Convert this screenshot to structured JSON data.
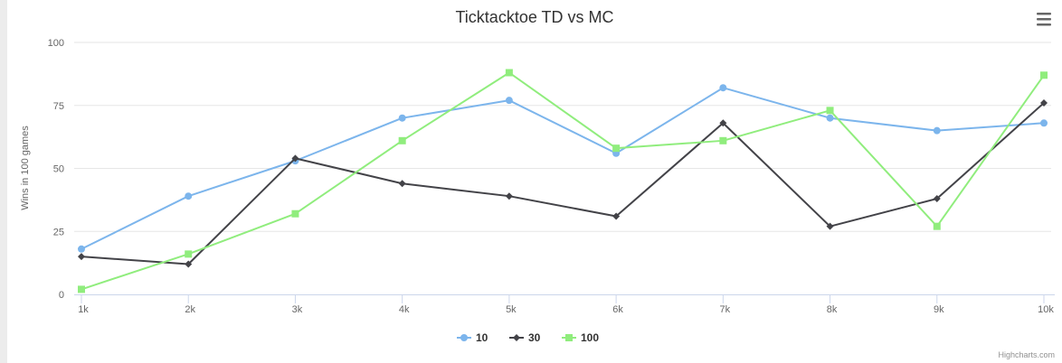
{
  "chart_data": {
    "type": "line",
    "title": "Ticktacktoe TD vs MC",
    "xlabel": "",
    "ylabel": "Wins in 100 games",
    "categories": [
      "1k",
      "2k",
      "3k",
      "4k",
      "5k",
      "6k",
      "7k",
      "8k",
      "9k",
      "10k"
    ],
    "ylim": [
      0,
      100
    ],
    "yticks": [
      0,
      25,
      50,
      75,
      100
    ],
    "grid": true,
    "legend": "bottom-center",
    "series": [
      {
        "name": "10",
        "color": "#7cb5ec",
        "marker": "circle",
        "values": [
          18,
          39,
          53,
          70,
          77,
          56,
          82,
          70,
          65,
          68
        ]
      },
      {
        "name": "30",
        "color": "#434348",
        "marker": "diamond",
        "values": [
          15,
          12,
          54,
          44,
          39,
          31,
          68,
          27,
          38,
          76
        ]
      },
      {
        "name": "100",
        "color": "#90ed7d",
        "marker": "square",
        "values": [
          2,
          16,
          32,
          61,
          88,
          58,
          61,
          73,
          27,
          87
        ]
      }
    ],
    "credits": "Highcharts.com"
  },
  "ui": {
    "menu_icon": "hamburger-menu-icon"
  }
}
